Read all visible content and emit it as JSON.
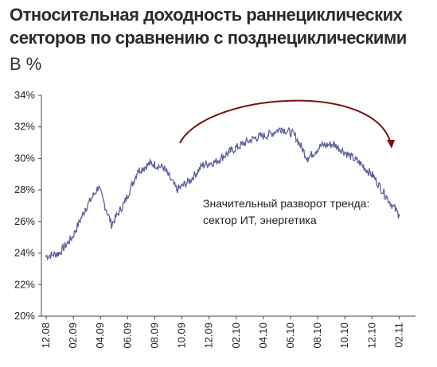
{
  "title_line1": "Относительная доходность раннециклических",
  "title_line2": "секторов по сравнению с позднециклическими",
  "unit": "В %",
  "chart_data": {
    "type": "line",
    "title": "Относительная доходность раннециклических секторов по сравнению с позднециклическими",
    "ylabel": "В %",
    "ylim": [
      20,
      34
    ],
    "y_ticks": [
      "20%",
      "22%",
      "24%",
      "26%",
      "28%",
      "30%",
      "32%",
      "34%"
    ],
    "x_ticks": [
      "12.08",
      "02.09",
      "04.09",
      "06.09",
      "08.09",
      "10.09",
      "12.09",
      "02.10",
      "04.10",
      "06.10",
      "08.10",
      "10.10",
      "12.10",
      "02.11"
    ],
    "grid": false,
    "line_color": "#5b5f9a",
    "arrow_color": "#7a1010",
    "annotation_line1": "Значительный разворот тренда:",
    "annotation_line2": "сектор ИТ, энергетика",
    "series": [
      {
        "x": [
          "12.08",
          "01.09",
          "02.09",
          "03.09",
          "04.09",
          "05.09",
          "06.09",
          "07.09",
          "08.09",
          "09.09",
          "10.09",
          "11.09",
          "12.09",
          "01.10",
          "02.10",
          "03.10",
          "04.10",
          "05.10",
          "06.10",
          "07.10",
          "08.10",
          "09.10",
          "10.10",
          "11.10",
          "12.10",
          "01.11",
          "02.11",
          "03.11"
        ],
        "values": [
          23.8,
          24.0,
          25.0,
          26.8,
          28.2,
          25.8,
          27.2,
          29.2,
          29.7,
          29.4,
          28.0,
          28.6,
          29.6,
          29.8,
          30.4,
          30.9,
          31.3,
          31.5,
          31.9,
          31.5,
          30.0,
          30.8,
          30.9,
          30.3,
          29.7,
          28.9,
          27.6,
          26.4
        ]
      }
    ]
  }
}
